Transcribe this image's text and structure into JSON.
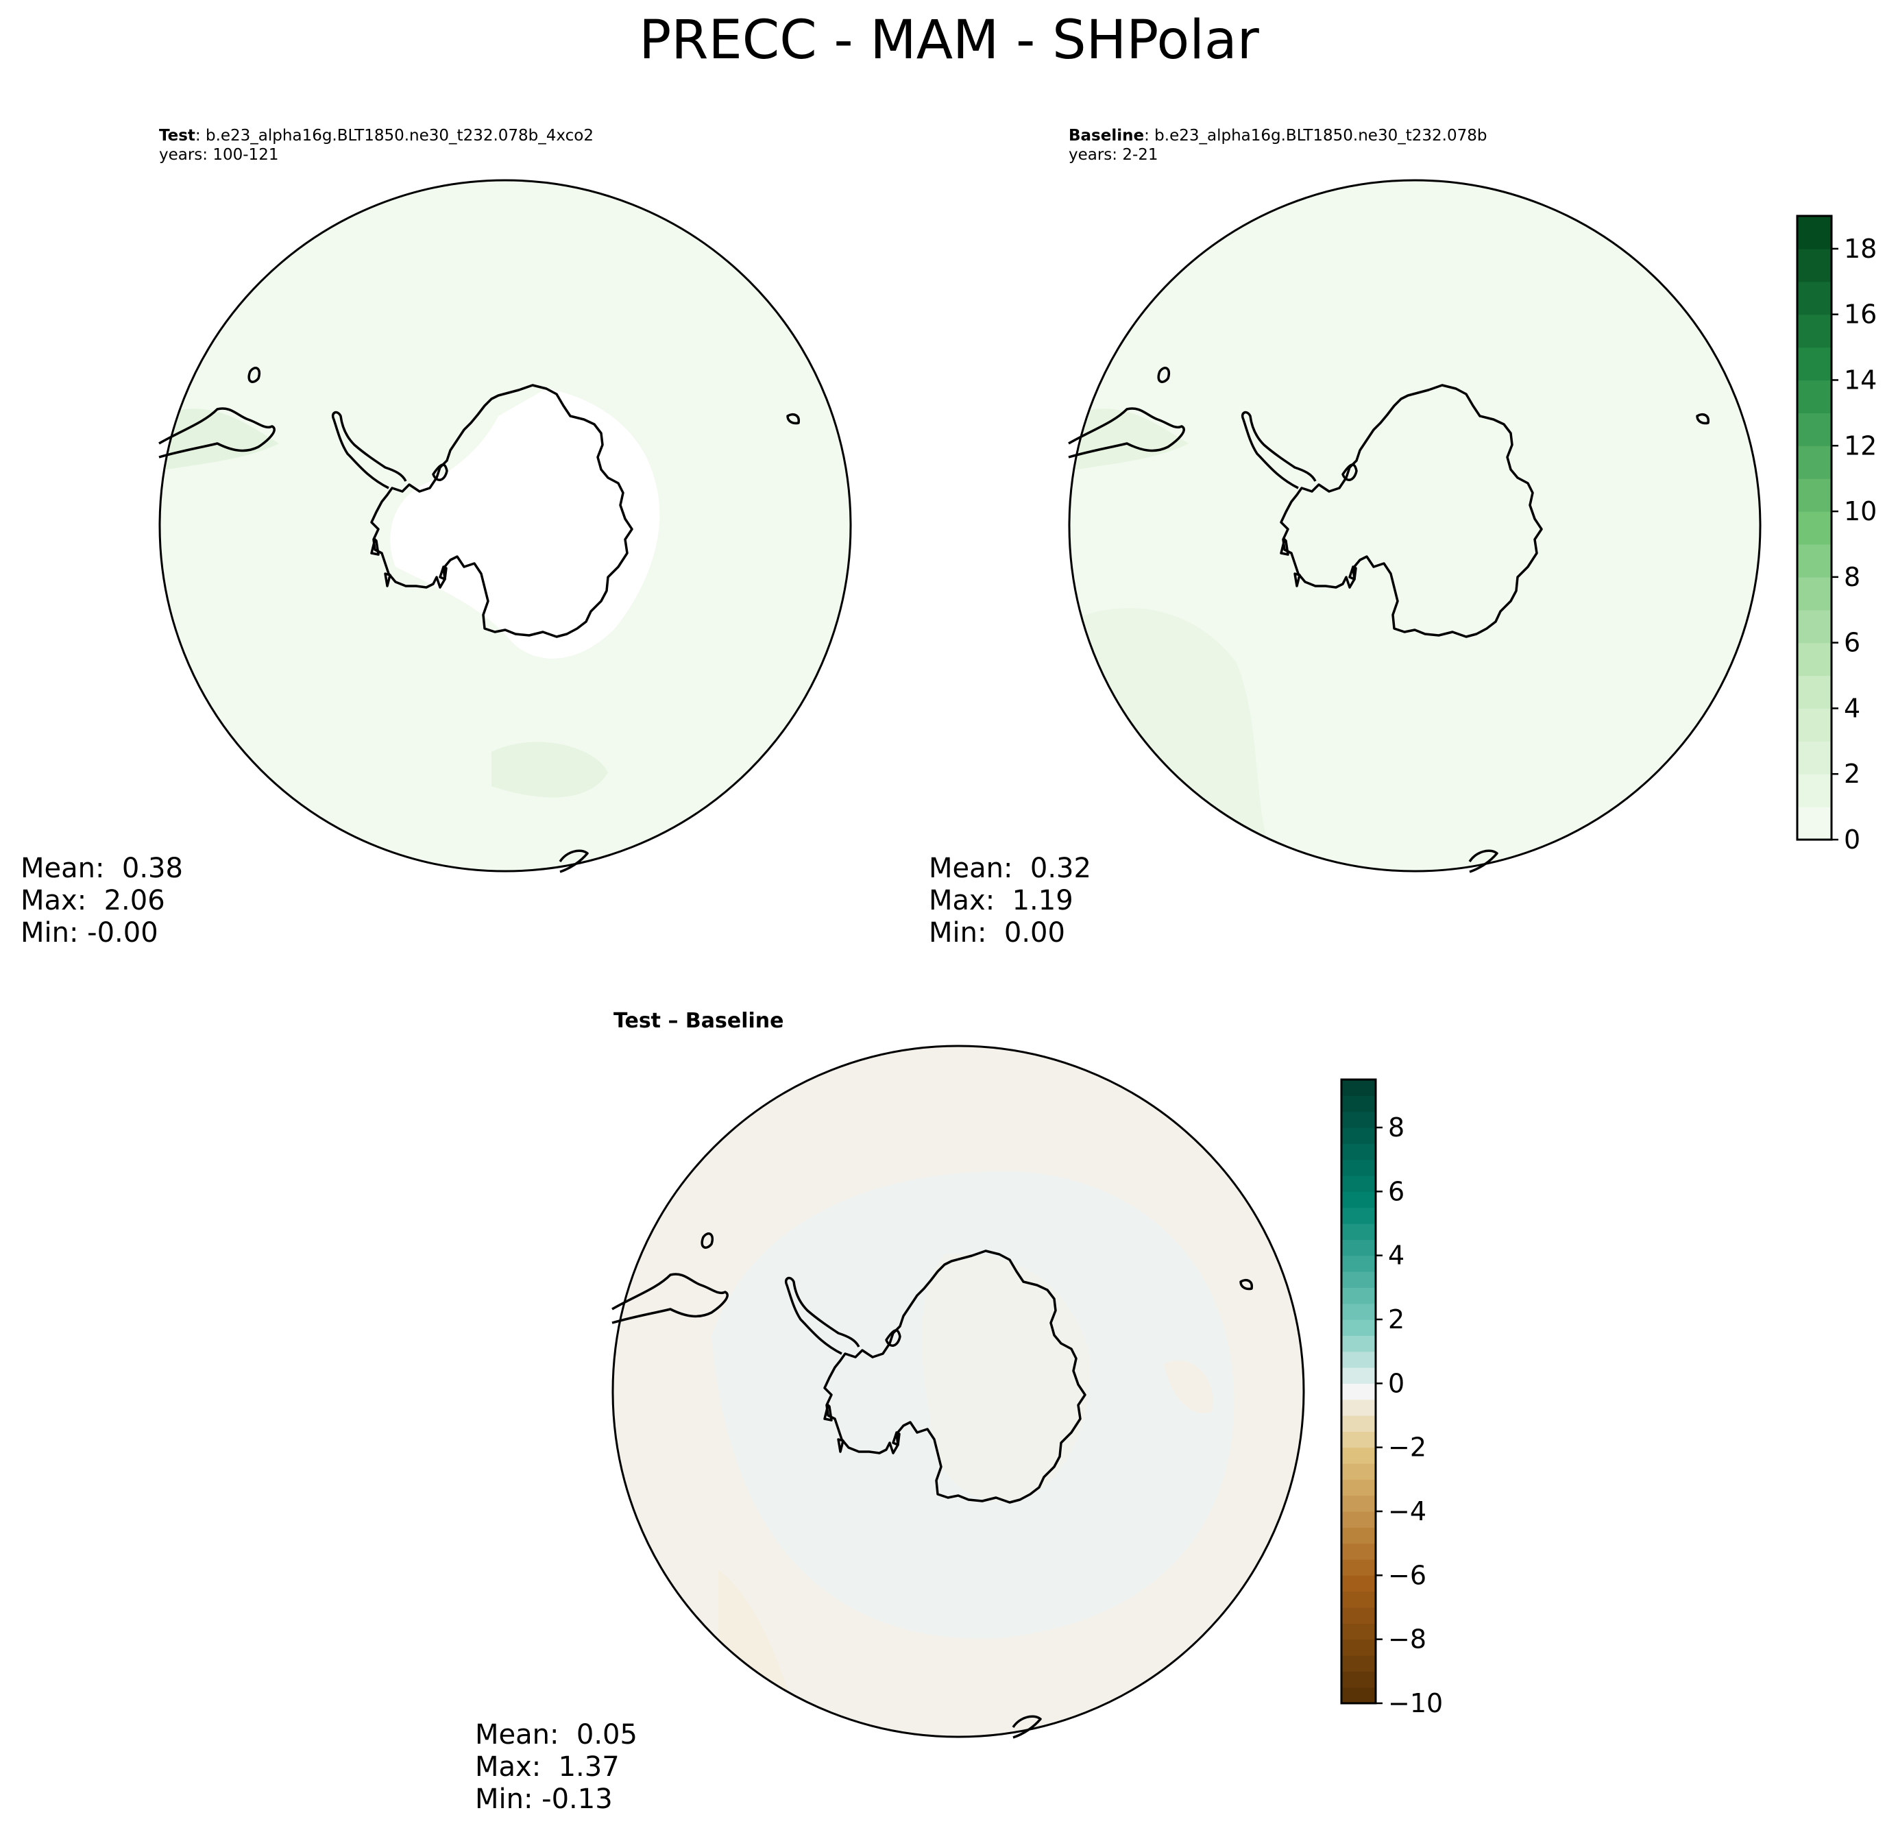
{
  "title": "PRECC - MAM - SHPolar",
  "panels": {
    "test": {
      "label": "Test",
      "case": ": b.e23_alpha16g.BLT1850.ne30_t232.078b_4xco2",
      "years": "years: 100-121",
      "stats": {
        "mean": "Mean:  0.38",
        "max": "Max:  2.06",
        "min": "Min: -0.00"
      }
    },
    "baseline": {
      "label": "Baseline",
      "case": ": b.e23_alpha16g.BLT1850.ne30_t232.078b",
      "years": "years: 2-21",
      "stats": {
        "mean": "Mean:  0.32",
        "max": "Max:  1.19",
        "min": "Min:  0.00"
      }
    },
    "diff": {
      "title": "Test – Baseline",
      "stats": {
        "mean": "Mean:  0.05",
        "max": "Max:  1.37",
        "min": "Min: -0.13"
      }
    }
  },
  "colorbars": {
    "main": {
      "ticks": [
        "0",
        "2",
        "4",
        "6",
        "8",
        "10",
        "12",
        "14",
        "16",
        "18"
      ],
      "range": [
        0,
        19
      ],
      "colormap": "Greens"
    },
    "diff": {
      "ticks": [
        "−10",
        "−8",
        "−6",
        "−4",
        "−2",
        "0",
        "2",
        "4",
        "6",
        "8"
      ],
      "range": [
        -10,
        9.5
      ],
      "colormap": "BrBG"
    }
  },
  "colors": {
    "test_fill": "#f1f9ee",
    "baseline_fill": "#f1f9ee",
    "diff_fill": "#f1f4f2",
    "coast": "#000000"
  }
}
